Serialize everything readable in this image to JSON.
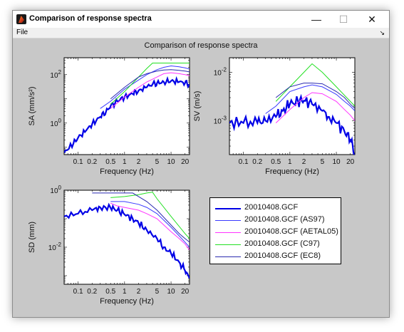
{
  "window": {
    "title": "Comparison of response spectra",
    "controls": {
      "minimize": "—",
      "maximize": "☐",
      "close": "✕"
    }
  },
  "menu": {
    "file": "File",
    "dock_glyph": "↘"
  },
  "figure": {
    "title": "Comparison of response spectra"
  },
  "colors": {
    "measured": "#0000e6",
    "as97": "#3a3aff",
    "aetal05": "#ff33ff",
    "c97": "#22e022",
    "ec8": "#2a2ab0",
    "axes_bg": "#ffffff",
    "figure_bg": "#c8c8c8"
  },
  "legend": {
    "items": [
      {
        "label": "20010408.GCF",
        "color": "#0000e6",
        "width": 2.5
      },
      {
        "label": "20010408.GCF (AS97)",
        "color": "#3a3aff",
        "width": 1
      },
      {
        "label": "20010408.GCF (AETAL05)",
        "color": "#ff33ff",
        "width": 1
      },
      {
        "label": "20010408.GCF (C97)",
        "color": "#22e022",
        "width": 1
      },
      {
        "label": "20010408.GCF (EC8)",
        "color": "#2a2ab0",
        "width": 1
      }
    ]
  },
  "chart_data": [
    {
      "type": "line",
      "id": "sa",
      "xlabel": "Frequency (Hz)",
      "ylabel": "SA (mm/s²)",
      "xscale": "log",
      "yscale": "log",
      "xlim": [
        0.05,
        25
      ],
      "ylim": [
        0.05,
        500
      ],
      "xticks": [
        0.1,
        0.2,
        0.5,
        1,
        2,
        5,
        10,
        20
      ],
      "xticklabels": [
        "0.1",
        "0.2",
        "0.5",
        "1",
        "2",
        "5",
        "10",
        "20"
      ],
      "yticks": [
        1,
        100
      ],
      "yticklabels": [
        "10^0",
        "10^2"
      ],
      "series": [
        {
          "name": "20010408.GCF",
          "x": [
            0.05,
            0.08,
            0.1,
            0.15,
            0.2,
            0.3,
            0.4,
            0.5,
            0.7,
            1,
            1.5,
            2,
            3,
            4,
            5,
            7,
            10,
            15,
            20,
            25
          ],
          "y": [
            0.06,
            0.15,
            0.25,
            0.5,
            0.9,
            1.8,
            3,
            5,
            8,
            12,
            16,
            22,
            30,
            40,
            45,
            50,
            55,
            50,
            45,
            40
          ]
        },
        {
          "name": "20010408.GCF (AS97)",
          "x": [
            0.3,
            0.5,
            1,
            2,
            3,
            5,
            7,
            10,
            15,
            20,
            25
          ],
          "y": [
            4,
            8,
            25,
            60,
            100,
            160,
            200,
            230,
            210,
            190,
            170
          ]
        },
        {
          "name": "20010408.GCF (AETAL05)",
          "x": [
            0.5,
            1,
            2,
            3,
            5,
            7,
            10,
            15,
            20,
            25
          ],
          "y": [
            4,
            12,
            30,
            50,
            80,
            110,
            120,
            110,
            100,
            90
          ]
        },
        {
          "name": "20010408.GCF (C97)",
          "x": [
            0.5,
            1,
            2,
            3,
            4,
            10,
            20,
            25
          ],
          "y": [
            6,
            20,
            80,
            180,
            300,
            300,
            300,
            300
          ]
        },
        {
          "name": "20010408.GCF (EC8)",
          "x": [
            0.5,
            1,
            2,
            3,
            5,
            7,
            10,
            15,
            20,
            25
          ],
          "y": [
            10,
            30,
            80,
            110,
            140,
            155,
            160,
            150,
            140,
            130
          ]
        }
      ]
    },
    {
      "type": "line",
      "id": "sv",
      "xlabel": "Frequency (Hz)",
      "ylabel": "SV (m/s)",
      "xscale": "log",
      "yscale": "log",
      "xlim": [
        0.05,
        25
      ],
      "ylim": [
        0.0002,
        0.02
      ],
      "xticks": [
        0.1,
        0.2,
        0.5,
        1,
        2,
        5,
        10,
        20
      ],
      "xticklabels": [
        "0.1",
        "0.2",
        "0.5",
        "1",
        "2",
        "5",
        "10",
        "20"
      ],
      "yticks": [
        0.001,
        0.01
      ],
      "yticklabels": [
        "10^-3",
        "10^-2"
      ],
      "series": [
        {
          "name": "20010408.GCF",
          "x": [
            0.05,
            0.1,
            0.2,
            0.3,
            0.5,
            0.7,
            1,
            1.5,
            2,
            3,
            5,
            7,
            10,
            15,
            20,
            25
          ],
          "y": [
            0.0009,
            0.0009,
            0.0009,
            0.001,
            0.0012,
            0.0016,
            0.0022,
            0.0025,
            0.0026,
            0.0022,
            0.0016,
            0.0012,
            0.0009,
            0.0006,
            0.0004,
            0.0002
          ]
        },
        {
          "name": "20010408.GCF (AS97)",
          "x": [
            0.3,
            0.5,
            1,
            2,
            3,
            5,
            10,
            15,
            20,
            25
          ],
          "y": [
            0.0014,
            0.002,
            0.004,
            0.005,
            0.0055,
            0.005,
            0.0035,
            0.0025,
            0.002,
            0.0016
          ]
        },
        {
          "name": "20010408.GCF (AETAL05)",
          "x": [
            0.5,
            1,
            2,
            3,
            5,
            10,
            15,
            20,
            25
          ],
          "y": [
            0.0009,
            0.0017,
            0.003,
            0.0038,
            0.0036,
            0.0025,
            0.0017,
            0.0013,
            0.001
          ]
        },
        {
          "name": "20010408.GCF (C97)",
          "x": [
            0.5,
            1,
            2,
            3,
            5,
            10,
            20,
            25
          ],
          "y": [
            0.0025,
            0.005,
            0.01,
            0.015,
            0.01,
            0.005,
            0.0025,
            0.002
          ]
        },
        {
          "name": "20010408.GCF (EC8)",
          "x": [
            0.5,
            1,
            2,
            3,
            5,
            10,
            15,
            20,
            25
          ],
          "y": [
            0.003,
            0.005,
            0.006,
            0.006,
            0.0058,
            0.004,
            0.003,
            0.0022,
            0.0018
          ]
        }
      ]
    },
    {
      "type": "line",
      "id": "sd",
      "xlabel": "Frequency (Hz)",
      "ylabel": "SD (mm)",
      "xscale": "log",
      "yscale": "log",
      "xlim": [
        0.05,
        25
      ],
      "ylim": [
        0.0005,
        1
      ],
      "xticks": [
        0.1,
        0.2,
        0.5,
        1,
        2,
        5,
        10,
        20
      ],
      "xticklabels": [
        "0.1",
        "0.2",
        "0.5",
        "1",
        "2",
        "5",
        "10",
        "20"
      ],
      "yticks": [
        0.01,
        1
      ],
      "yticklabels": [
        "10^-2",
        "10^0"
      ],
      "series": [
        {
          "name": "20010408.GCF",
          "x": [
            0.05,
            0.1,
            0.2,
            0.3,
            0.5,
            0.7,
            1,
            1.5,
            2,
            3,
            5,
            7,
            10,
            15,
            20,
            25
          ],
          "y": [
            0.12,
            0.15,
            0.2,
            0.25,
            0.24,
            0.2,
            0.14,
            0.1,
            0.07,
            0.04,
            0.02,
            0.01,
            0.006,
            0.003,
            0.0015,
            0.0008
          ]
        },
        {
          "name": "20010408.GCF (AS97)",
          "x": [
            0.5,
            1,
            2,
            3,
            5,
            10,
            15,
            20,
            25
          ],
          "y": [
            0.4,
            0.4,
            0.32,
            0.25,
            0.15,
            0.05,
            0.025,
            0.015,
            0.01
          ]
        },
        {
          "name": "20010408.GCF (AETAL05)",
          "x": [
            0.5,
            0.7,
            1,
            2,
            3,
            5,
            10,
            15,
            20,
            25
          ],
          "y": [
            0.35,
            0.28,
            0.25,
            0.2,
            0.15,
            0.1,
            0.035,
            0.02,
            0.013,
            0.008
          ]
        },
        {
          "name": "20010408.GCF (C97)",
          "x": [
            0.5,
            1,
            2,
            3,
            4,
            5,
            10,
            20,
            25
          ],
          "y": [
            0.55,
            0.6,
            0.7,
            0.8,
            0.85,
            0.5,
            0.12,
            0.03,
            0.02
          ]
        },
        {
          "name": "20010408.GCF (EC8)",
          "x": [
            0.2,
            0.5,
            1,
            1.5,
            2,
            3,
            5,
            10,
            15,
            20,
            25
          ],
          "y": [
            0.8,
            0.8,
            0.8,
            0.8,
            0.6,
            0.4,
            0.2,
            0.06,
            0.03,
            0.02,
            0.015
          ]
        }
      ]
    }
  ]
}
